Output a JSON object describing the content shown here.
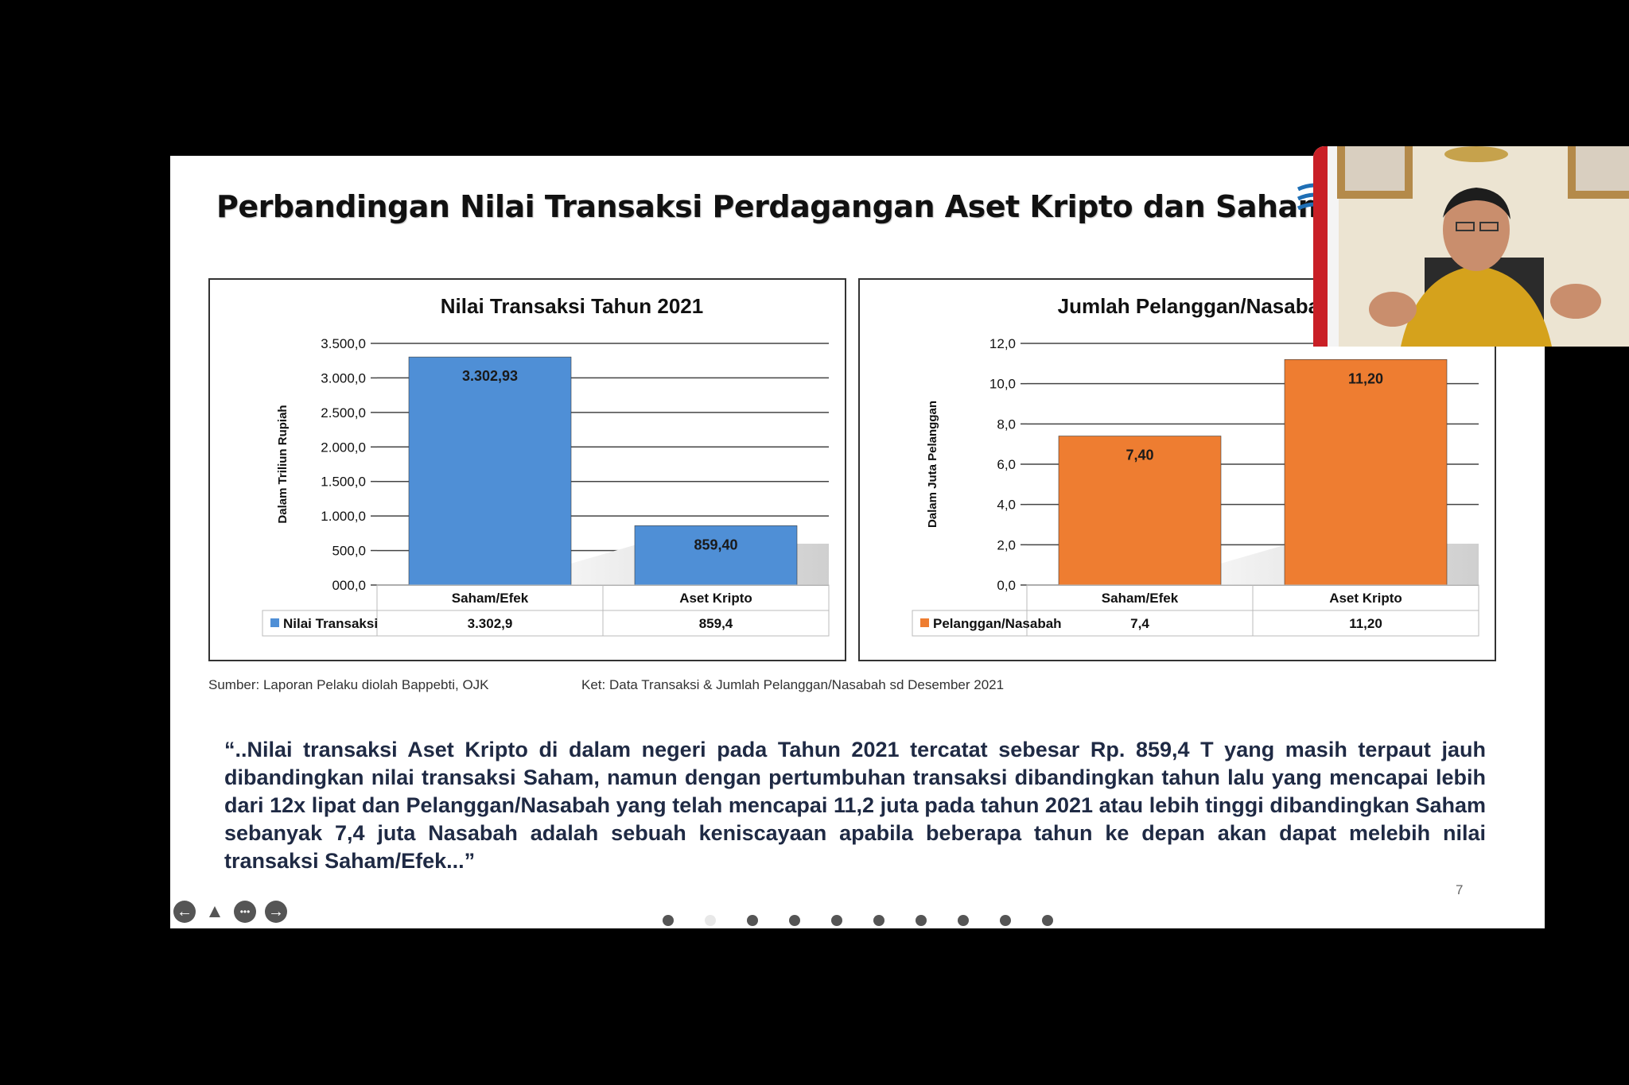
{
  "slide": {
    "title": "Perbandingan Nilai Transaksi Perdagangan Aset Kripto dan Saham",
    "footnote_source": "Sumber: Laporan Pelaku diolah Bappebti, OJK",
    "footnote_note": "Ket: Data Transaksi & Jumlah Pelanggan/Nasabah sd Desember 2021",
    "quote": "“..Nilai transaksi Aset Kripto di dalam negeri pada Tahun 2021 tercatat sebesar Rp. 859,4 T yang masih terpaut jauh dibandingkan nilai transaksi Saham, namun dengan pertumbuhan transaksi dibandingkan tahun lalu yang mencapai lebih dari 12x lipat dan Pelanggan/Nasabah yang telah mencapai 11,2 juta pada tahun 2021 atau lebih tinggi dibandingkan Saham sebanyak 7,4 juta Nasabah adalah sebuah keniscayaan apabila beberapa tahun ke depan akan dapat melebih nilai transaksi Saham/Efek...”",
    "page_number": "7"
  },
  "controls": {
    "prev_icon": "arrow-left-icon",
    "pointer_icon": "pointer-icon",
    "more_icon": "more-icon",
    "next_icon": "arrow-right-icon",
    "prev_glyph": "←",
    "pointer_glyph": "▲",
    "more_glyph": "•••",
    "next_glyph": "→",
    "dot_count": 10,
    "active_dot": 1
  },
  "colors": {
    "blue_bar": "#4f8fd6",
    "orange_bar": "#ee7d31",
    "title_text": "#111111",
    "quote_text": "#1f2a44"
  },
  "chart_data": [
    {
      "type": "bar",
      "title": "Nilai Transaksi Tahun 2021",
      "ylabel": "Dalam Triliun Rupiah",
      "categories": [
        "Saham/Efek",
        "Aset Kripto"
      ],
      "series": [
        {
          "name": "Nilai Transaksi",
          "values": [
            3302.93,
            859.4
          ],
          "labels": [
            "3.302,93",
            "859,40"
          ],
          "table": [
            "3.302,9",
            "859,4"
          ]
        }
      ],
      "ylim": [
        0,
        3500
      ],
      "ytick_labels": [
        "000,0",
        "500,0",
        "1.000,0",
        "1.500,0",
        "2.000,0",
        "2.500,0",
        "3.000,0",
        "3.500,0"
      ],
      "grid": true,
      "legend": "data-table-bottom"
    },
    {
      "type": "bar",
      "title": "Jumlah Pelanggan/Nasabah Tahu",
      "ylabel": "Dalam Juta Pelanggan",
      "categories": [
        "Saham/Efek",
        "Aset Kripto"
      ],
      "series": [
        {
          "name": "Pelanggan/Nasabah",
          "values": [
            7.4,
            11.2
          ],
          "labels": [
            "7,40",
            "11,20"
          ],
          "table": [
            "7,4",
            "11,20"
          ]
        }
      ],
      "ylim": [
        0,
        12
      ],
      "ytick_labels": [
        "0,0",
        "2,0",
        "4,0",
        "6,0",
        "8,0",
        "10,0",
        "12,0"
      ],
      "grid": true,
      "legend": "data-table-bottom"
    }
  ]
}
